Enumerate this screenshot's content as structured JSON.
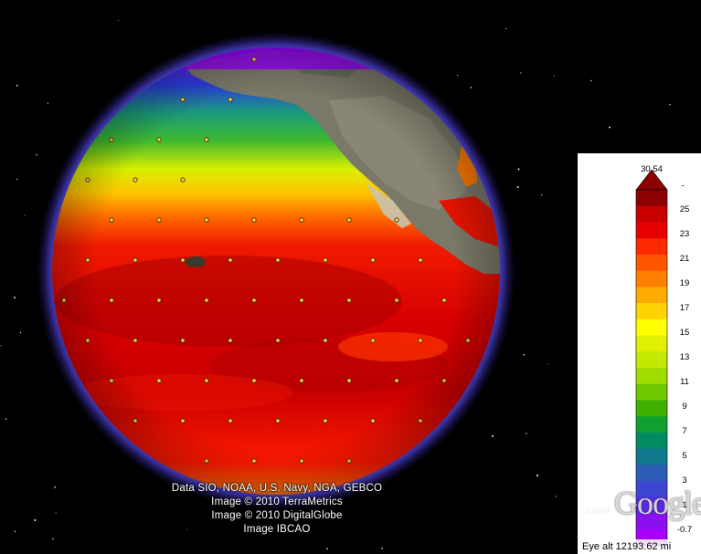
{
  "map": {
    "view": "globe",
    "region": "Pacific Ocean and North America",
    "overlay": "sea surface temperature"
  },
  "attribution": {
    "line1": "Data SIO, NOAA, U.S. Navy, NGA, GEBCO",
    "line2": "Image © 2010 TerraMetrics",
    "line3": "Image © 2010 DigitalGlobe",
    "line4": "Image IBCAO"
  },
  "legend": {
    "max_label": "30.54",
    "top_tick": "-",
    "tick_labels": [
      "25",
      "23",
      "21",
      "19",
      "17",
      "15",
      "13",
      "11",
      "9",
      "7",
      "5",
      "3",
      "1",
      "-0.7"
    ],
    "colors": [
      "#8b0000",
      "#c80000",
      "#e60000",
      "#ff2a00",
      "#ff5500",
      "#ff8000",
      "#ffaa00",
      "#ffd400",
      "#ffff00",
      "#e0f000",
      "#c4e800",
      "#a0dc00",
      "#70c800",
      "#40b000",
      "#10a030",
      "#008c60",
      "#10788c",
      "#2c5cb4",
      "#3c46d2",
      "#5a28e6",
      "#8a10f0",
      "#a800f8"
    ]
  },
  "branding": {
    "logo": "Google",
    "copyright": "©2009"
  },
  "status": {
    "eye_alt": "Eye alt 12193.62 mi"
  }
}
